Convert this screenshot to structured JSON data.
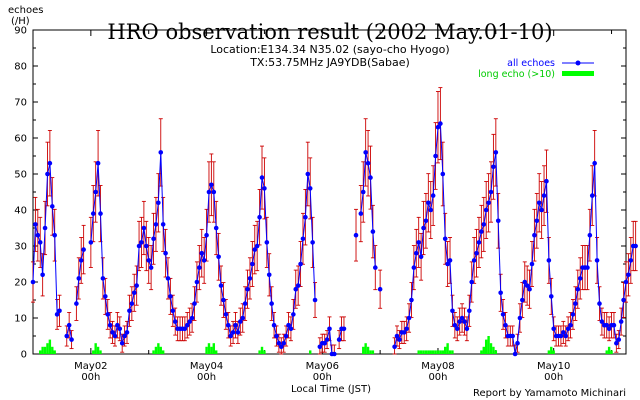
{
  "chart_data": {
    "type": "line",
    "title": "HRO observation result (2002 May.01-10)",
    "subtitle_location": "Location:E134.34 N35.02 (sayo-cho Hyogo)",
    "subtitle_tx": "TX:53.75MHz JA9YDB(Sabae)",
    "ylabel_line1": "echoes",
    "ylabel_line2": "(/H)",
    "xlabel": "Local Time (JST)",
    "credit": "Report by Yamamoto Michinari",
    "ylim": [
      0,
      90
    ],
    "xlim": [
      0,
      10.25
    ],
    "yticks": [
      0,
      10,
      20,
      30,
      40,
      50,
      60,
      70,
      80,
      90
    ],
    "xticks": [
      {
        "pos": 1,
        "line1": "May02",
        "line2": "00h"
      },
      {
        "pos": 3,
        "line1": "May04",
        "line2": "00h"
      },
      {
        "pos": 5,
        "line1": "May06",
        "line2": "00h"
      },
      {
        "pos": 7,
        "line1": "May08",
        "line2": "00h"
      },
      {
        "pos": 9,
        "line1": "May10",
        "line2": "00h"
      }
    ],
    "grid": false,
    "legend_position": "top-right",
    "colors": {
      "all": "#0000ff",
      "errorbar": "#cc0000",
      "long": "#00cc00"
    },
    "series": [
      {
        "name": "all echoes",
        "kind": "hourly_with_errorbars",
        "x_unit": "days since May01 00h",
        "values": [
          20,
          36,
          33,
          31,
          22,
          35,
          50,
          53,
          41,
          33,
          11,
          12,
          null,
          null,
          5,
          8,
          4,
          null,
          14,
          21,
          26,
          29,
          null,
          null,
          31,
          39,
          45,
          53,
          39,
          21,
          16,
          11,
          8,
          6,
          5,
          8,
          7,
          3,
          5,
          6,
          12,
          14,
          17,
          19,
          30,
          31,
          35,
          30,
          26,
          24,
          32,
          36,
          42,
          56,
          36,
          28,
          21,
          16,
          12,
          9,
          7,
          7,
          7,
          7,
          8,
          9,
          10,
          14,
          20,
          24,
          28,
          26,
          33,
          45,
          47,
          45,
          35,
          27,
          19,
          15,
          11,
          8,
          5,
          6,
          8,
          6,
          9,
          10,
          14,
          18,
          21,
          25,
          29,
          30,
          38,
          49,
          46,
          31,
          22,
          14,
          8,
          5,
          3,
          2,
          3,
          5,
          8,
          7,
          11,
          18,
          19,
          25,
          32,
          38,
          50,
          46,
          31,
          15,
          null,
          2,
          3,
          3,
          4,
          7,
          0,
          0,
          null,
          4,
          7,
          7,
          null,
          null,
          null,
          null,
          33,
          null,
          39,
          45,
          56,
          53,
          49,
          34,
          24,
          null,
          18,
          null,
          null,
          null,
          null,
          null,
          2,
          5,
          4,
          6,
          6,
          7,
          10,
          15,
          24,
          28,
          31,
          27,
          35,
          37,
          42,
          40,
          44,
          55,
          63,
          64,
          50,
          32,
          25,
          26,
          12,
          8,
          7,
          9,
          10,
          9,
          7,
          12,
          20,
          26,
          28,
          31,
          34,
          36,
          40,
          42,
          45,
          52,
          56,
          37,
          17,
          11,
          8,
          5,
          5,
          5,
          0,
          3,
          10,
          15,
          20,
          19,
          18,
          25,
          33,
          37,
          42,
          40,
          44,
          48,
          26,
          16,
          7,
          5,
          5,
          5,
          6,
          5,
          7,
          8,
          11,
          14,
          18,
          21,
          24,
          24,
          24,
          33,
          44,
          53,
          26,
          14,
          9,
          8,
          8,
          7,
          8,
          8,
          3,
          4,
          9,
          15,
          20,
          22,
          26,
          30,
          30
        ]
      },
      {
        "name": "long echo (>10)",
        "kind": "hourly_bars",
        "x_unit": "days since May01 00h",
        "values": [
          0,
          0,
          0,
          1,
          2,
          2,
          3,
          4,
          2,
          1,
          0,
          0,
          0,
          0,
          0,
          0,
          0,
          0,
          0,
          0,
          0,
          0,
          0,
          0,
          0,
          1,
          3,
          2,
          1,
          0,
          0,
          0,
          0,
          0,
          0,
          0,
          0,
          0,
          0,
          0,
          0,
          0,
          0,
          0,
          0,
          0,
          0,
          0,
          0,
          0,
          1,
          2,
          3,
          2,
          1,
          0,
          0,
          0,
          0,
          0,
          0,
          0,
          0,
          0,
          0,
          0,
          0,
          0,
          0,
          0,
          0,
          0,
          2,
          3,
          2,
          3,
          1,
          0,
          0,
          0,
          0,
          0,
          0,
          0,
          0,
          0,
          0,
          0,
          0,
          0,
          0,
          0,
          0,
          0,
          1,
          2,
          1,
          0,
          0,
          0,
          0,
          0,
          0,
          0,
          0,
          0,
          0,
          0,
          0,
          0,
          0,
          0,
          0,
          0,
          0,
          1,
          0,
          0,
          0,
          0,
          0,
          0,
          0,
          0,
          0,
          0,
          0,
          0,
          0,
          0,
          0,
          0,
          0,
          0,
          0,
          0,
          0,
          2,
          3,
          2,
          1,
          1,
          0,
          0,
          0,
          0,
          0,
          0,
          0,
          0,
          0,
          0,
          0,
          0,
          0,
          0,
          0,
          0,
          0,
          0,
          1,
          1,
          1,
          1,
          1,
          1,
          1,
          1,
          1,
          1,
          1,
          2,
          3,
          1,
          1,
          0,
          0,
          0,
          0,
          0,
          0,
          0,
          0,
          0,
          0,
          0,
          1,
          2,
          4,
          5,
          3,
          2,
          1,
          0,
          0,
          0,
          0,
          0,
          0,
          0,
          0,
          0,
          0,
          0,
          0,
          0,
          0,
          0,
          0,
          0,
          0,
          0,
          0,
          0,
          1,
          2,
          1,
          0,
          0,
          0,
          0,
          0,
          0,
          0,
          0,
          0,
          0,
          0,
          0,
          0,
          0,
          0,
          0,
          0,
          0,
          0,
          0,
          0,
          1,
          2,
          1,
          0,
          0,
          0,
          0,
          0,
          0,
          0,
          0,
          0,
          0,
          0,
          0,
          0,
          0,
          0,
          0
        ]
      }
    ]
  }
}
